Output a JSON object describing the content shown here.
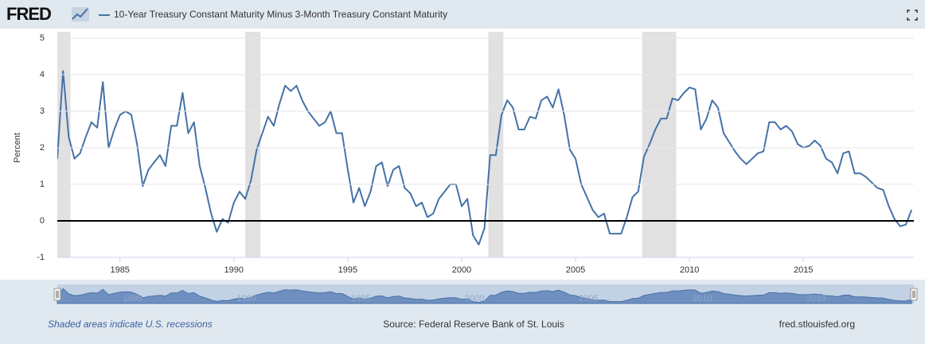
{
  "brand": "FRED",
  "chart_data": {
    "type": "line",
    "y_label": "Percent",
    "x": [
      1982.25,
      1982.5,
      1982.75,
      1983,
      1983.25,
      1983.5,
      1983.75,
      1984,
      1984.25,
      1984.5,
      1984.75,
      1985,
      1985.25,
      1985.5,
      1985.75,
      1986,
      1986.25,
      1986.5,
      1986.75,
      1987,
      1987.25,
      1987.5,
      1987.75,
      1988,
      1988.25,
      1988.5,
      1988.75,
      1989,
      1989.25,
      1989.5,
      1989.75,
      1990,
      1990.25,
      1990.5,
      1990.75,
      1991,
      1991.25,
      1991.5,
      1991.75,
      1992,
      1992.25,
      1992.5,
      1992.75,
      1993,
      1993.25,
      1993.5,
      1993.75,
      1994,
      1994.25,
      1994.5,
      1994.75,
      1995,
      1995.25,
      1995.5,
      1995.75,
      1996,
      1996.25,
      1996.5,
      1996.75,
      1997,
      1997.25,
      1997.5,
      1997.75,
      1998,
      1998.25,
      1998.5,
      1998.75,
      1999,
      1999.25,
      1999.5,
      1999.75,
      2000,
      2000.25,
      2000.5,
      2000.75,
      2001,
      2001.25,
      2001.5,
      2001.75,
      2002,
      2002.25,
      2002.5,
      2002.75,
      2003,
      2003.25,
      2003.5,
      2003.75,
      2004,
      2004.25,
      2004.5,
      2004.75,
      2005,
      2005.25,
      2005.5,
      2005.75,
      2006,
      2006.25,
      2006.5,
      2006.75,
      2007,
      2007.25,
      2007.5,
      2007.75,
      2008,
      2008.25,
      2008.5,
      2008.75,
      2009,
      2009.25,
      2009.5,
      2009.75,
      2010,
      2010.25,
      2010.5,
      2010.75,
      2011,
      2011.25,
      2011.5,
      2011.75,
      2012,
      2012.25,
      2012.5,
      2012.75,
      2013,
      2013.25,
      2013.5,
      2013.75,
      2014,
      2014.25,
      2014.5,
      2014.75,
      2015,
      2015.25,
      2015.5,
      2015.75,
      2016,
      2016.25,
      2016.5,
      2016.75,
      2017,
      2017.25,
      2017.5,
      2017.75,
      2018,
      2018.25,
      2018.5,
      2018.75,
      2019,
      2019.25,
      2019.5,
      2019.75
    ],
    "series": [
      {
        "name": "10-Year Treasury Constant Maturity Minus 3-Month Treasury Constant Maturity",
        "color": "#4572a7",
        "values": [
          1.7,
          4.1,
          2.3,
          1.7,
          1.85,
          2.3,
          2.7,
          2.55,
          3.8,
          2.0,
          2.5,
          2.9,
          3.0,
          2.9,
          2.1,
          0.95,
          1.4,
          1.6,
          1.8,
          1.5,
          2.6,
          2.6,
          3.5,
          2.4,
          2.7,
          1.5,
          0.9,
          0.2,
          -0.3,
          0.05,
          -0.05,
          0.5,
          0.8,
          0.6,
          1.1,
          1.95,
          2.4,
          2.85,
          2.6,
          3.2,
          3.7,
          3.55,
          3.7,
          3.3,
          3.0,
          2.8,
          2.6,
          2.7,
          3.0,
          2.4,
          2.4,
          1.4,
          0.5,
          0.9,
          0.4,
          0.8,
          1.5,
          1.6,
          0.95,
          1.4,
          1.5,
          0.9,
          0.75,
          0.4,
          0.5,
          0.1,
          0.2,
          0.6,
          0.8,
          1.0,
          1.0,
          0.4,
          0.6,
          -0.4,
          -0.65,
          -0.2,
          1.8,
          1.8,
          2.9,
          3.3,
          3.1,
          2.5,
          2.5,
          2.85,
          2.8,
          3.3,
          3.4,
          3.1,
          3.6,
          2.9,
          1.95,
          1.7,
          1.0,
          0.65,
          0.3,
          0.1,
          0.2,
          -0.35,
          -0.35,
          -0.35,
          0.1,
          0.65,
          0.8,
          1.75,
          2.1,
          2.5,
          2.8,
          2.8,
          3.35,
          3.3,
          3.5,
          3.65,
          3.6,
          2.5,
          2.8,
          3.3,
          3.1,
          2.4,
          2.15,
          1.9,
          1.7,
          1.55,
          1.7,
          1.85,
          1.9,
          2.7,
          2.7,
          2.5,
          2.6,
          2.45,
          2.1,
          2.0,
          2.05,
          2.2,
          2.05,
          1.7,
          1.6,
          1.3,
          1.85,
          1.9,
          1.3,
          1.3,
          1.2,
          1.05,
          0.9,
          0.85,
          0.4,
          0.05,
          -0.15,
          -0.1,
          0.3
        ]
      }
    ],
    "recessions": [
      [
        1981.5,
        1982.83
      ],
      [
        1990.5,
        1991.17
      ],
      [
        2001.17,
        2001.83
      ],
      [
        2007.92,
        2009.42
      ]
    ],
    "recession_color": "#e1e1e1",
    "xlim": [
      1982.25,
      2019.85
    ],
    "xticks": [
      1985,
      1990,
      1995,
      2000,
      2005,
      2010,
      2015
    ],
    "ylim": [
      -1,
      5
    ],
    "yticks": [
      -1,
      0,
      1,
      2,
      3,
      4,
      5
    ],
    "grid": true,
    "zero_line": true,
    "recession_note": "Shaded areas indicate U.S. recessions",
    "source": "Source: Federal Reserve Bank of St. Louis",
    "site": "fred.stlouisfed.org"
  }
}
